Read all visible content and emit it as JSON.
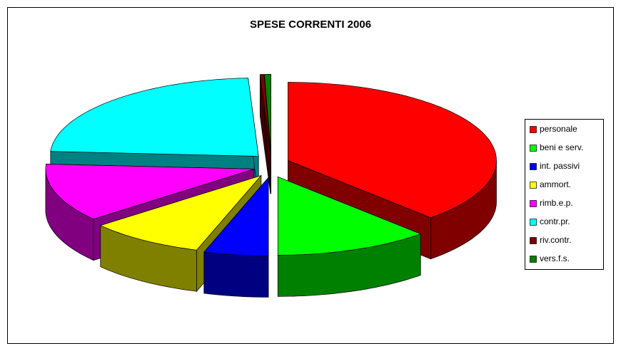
{
  "chart_data": {
    "type": "pie",
    "title": "SPESE CORRENTI 2006",
    "categories": [
      "personale",
      "beni e serv.",
      "int. passivi",
      "ammort.",
      "rimb.e.p.",
      "contr.pr.",
      "riv.contr.",
      "vers.f.s."
    ],
    "values": [
      38,
      12,
      5,
      9,
      12,
      23.2,
      0.3,
      0.5
    ],
    "colors": [
      "#ff0000",
      "#00ff00",
      "#0000ff",
      "#ffff00",
      "#ff00ff",
      "#00ffff",
      "#800000",
      "#008000"
    ],
    "side_colors": [
      "#800000",
      "#008000",
      "#000080",
      "#808000",
      "#800080",
      "#008080",
      "#400000",
      "#004000"
    ],
    "legend": "right"
  }
}
